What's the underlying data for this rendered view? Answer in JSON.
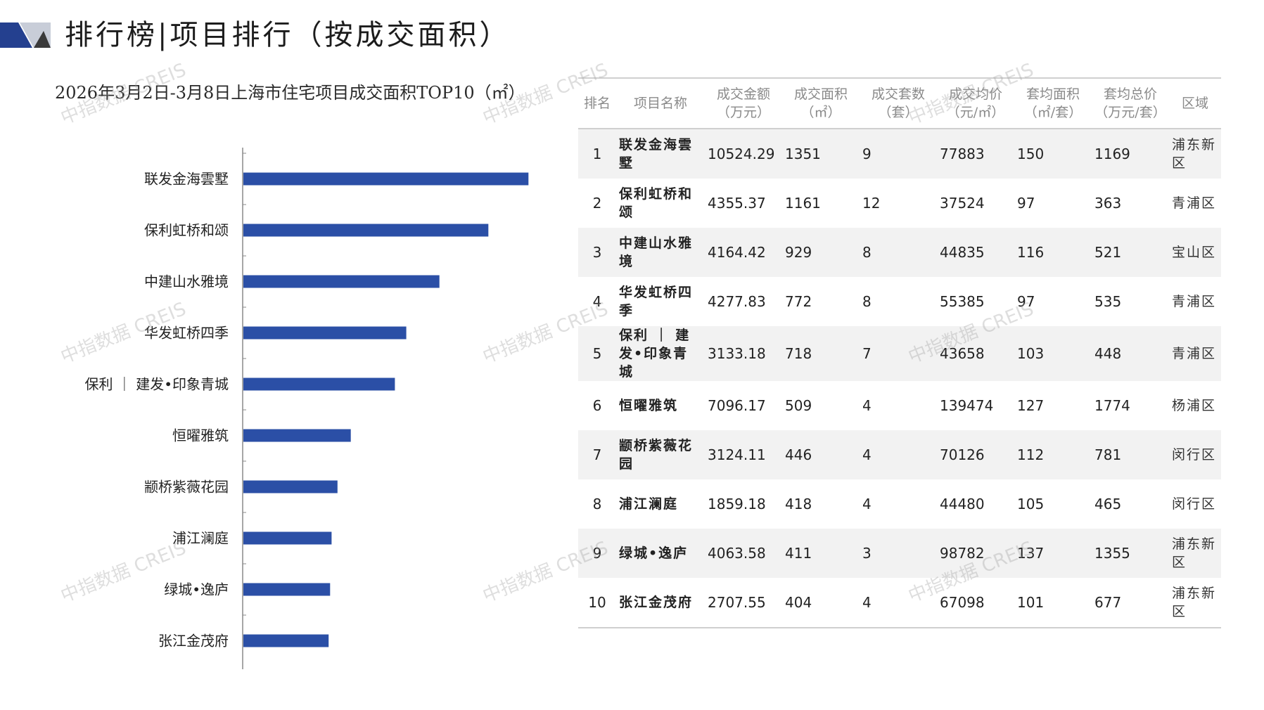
{
  "header": {
    "title": "排行榜|项目排行（按成交面积）"
  },
  "watermark": "中指数据 CREIS",
  "colors": {
    "bar": "#2b4fa6",
    "header_dark": "#24408f",
    "header_light": "#c8cdd8"
  },
  "chart_data": {
    "type": "bar",
    "orientation": "horizontal",
    "title": "2026年3月2日-3月8日上海市住宅项目成交面积TOP10（㎡）",
    "categories": [
      "联发金海雲墅",
      "保利虹桥和颂",
      "中建山水雅境",
      "华发虹桥四季",
      "保利 ｜ 建发•印象青城",
      "恒曜雅筑",
      "颛桥紫薇花园",
      "浦江澜庭",
      "绿城•逸庐",
      "张江金茂府"
    ],
    "values": [
      1351,
      1161,
      929,
      772,
      718,
      509,
      446,
      418,
      411,
      404
    ],
    "xlim": [
      0,
      1600
    ],
    "grid": false,
    "legend": "none"
  },
  "table": {
    "headers": [
      "排名",
      "项目名称",
      "成交金额\n（万元）",
      "成交面积\n（㎡）",
      "成交套数\n（套）",
      "成交均价\n（元/㎡）",
      "套均面积\n（㎡/套）",
      "套均总价\n（万元/套）",
      "区域"
    ],
    "rows": [
      [
        "1",
        "联发金海雲墅",
        "10524.29",
        "1351",
        "9",
        "77883",
        "150",
        "1169",
        "浦东新区"
      ],
      [
        "2",
        "保利虹桥和颂",
        "4355.37",
        "1161",
        "12",
        "37524",
        "97",
        "363",
        "青浦区"
      ],
      [
        "3",
        "中建山水雅境",
        "4164.42",
        "929",
        "8",
        "44835",
        "116",
        "521",
        "宝山区"
      ],
      [
        "4",
        "华发虹桥四季",
        "4277.83",
        "772",
        "8",
        "55385",
        "97",
        "535",
        "青浦区"
      ],
      [
        "5",
        "保利 ｜ 建发•印象青城",
        "3133.18",
        "718",
        "7",
        "43658",
        "103",
        "448",
        "青浦区"
      ],
      [
        "6",
        "恒曜雅筑",
        "7096.17",
        "509",
        "4",
        "139474",
        "127",
        "1774",
        "杨浦区"
      ],
      [
        "7",
        "颛桥紫薇花园",
        "3124.11",
        "446",
        "4",
        "70126",
        "112",
        "781",
        "闵行区"
      ],
      [
        "8",
        "浦江澜庭",
        "1859.18",
        "418",
        "4",
        "44480",
        "105",
        "465",
        "闵行区"
      ],
      [
        "9",
        "绿城•逸庐",
        "4063.58",
        "411",
        "3",
        "98782",
        "137",
        "1355",
        "浦东新区"
      ],
      [
        "10",
        "张江金茂府",
        "2707.55",
        "404",
        "4",
        "67098",
        "101",
        "677",
        "浦东新区"
      ]
    ]
  }
}
